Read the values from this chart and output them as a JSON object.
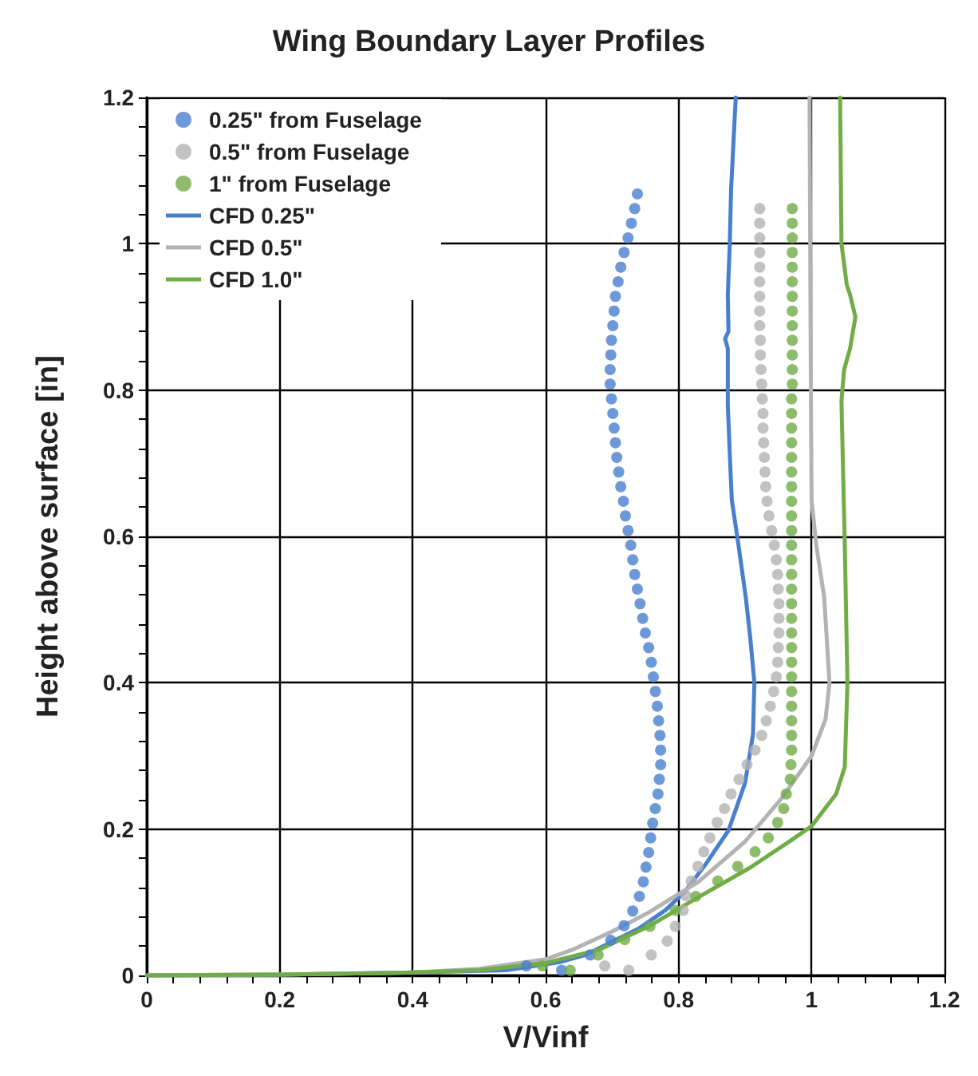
{
  "chart_data": {
    "type": "line",
    "title": "Wing Boundary Layer Profiles",
    "xlabel": "V/Vinf",
    "ylabel": "Height above surface [in]",
    "xlim": [
      0,
      1.2
    ],
    "xticks": [
      0,
      0.2,
      0.4,
      0.6,
      0.8,
      1,
      1.2
    ],
    "ylim": [
      0,
      1.2
    ],
    "yticks": [
      0,
      0.2,
      0.4,
      0.6,
      0.8,
      1,
      1.2
    ],
    "grid": true,
    "legend": "top left",
    "series": [
      {
        "name": "0.25\" from Fuselage",
        "type": "scatter",
        "marker": "circle",
        "color": "#4a7fcf",
        "x": [
          0.571,
          0.624,
          0.667,
          0.698,
          0.718,
          0.731,
          0.741,
          0.747,
          0.751,
          0.755,
          0.758,
          0.761,
          0.765,
          0.769,
          0.771,
          0.773,
          0.773,
          0.772,
          0.77,
          0.768,
          0.765,
          0.762,
          0.759,
          0.755,
          0.75,
          0.746,
          0.742,
          0.738,
          0.734,
          0.731,
          0.728,
          0.724,
          0.72,
          0.717,
          0.713,
          0.71,
          0.707,
          0.705,
          0.703,
          0.701,
          0.699,
          0.697,
          0.697,
          0.698,
          0.699,
          0.701,
          0.703,
          0.705,
          0.709,
          0.713,
          0.718,
          0.724,
          0.729,
          0.734,
          0.738
        ],
        "values": [
          0.013,
          0.007,
          0.028,
          0.048,
          0.068,
          0.088,
          0.108,
          0.128,
          0.148,
          0.168,
          0.188,
          0.208,
          0.228,
          0.248,
          0.268,
          0.288,
          0.308,
          0.328,
          0.348,
          0.368,
          0.388,
          0.408,
          0.428,
          0.448,
          0.468,
          0.488,
          0.508,
          0.528,
          0.548,
          0.568,
          0.588,
          0.608,
          0.628,
          0.648,
          0.668,
          0.688,
          0.708,
          0.728,
          0.748,
          0.768,
          0.788,
          0.808,
          0.828,
          0.848,
          0.868,
          0.888,
          0.908,
          0.928,
          0.948,
          0.968,
          0.988,
          1.008,
          1.028,
          1.048,
          1.068
        ]
      },
      {
        "name": "0.5\" from Fuselage",
        "type": "scatter",
        "marker": "circle",
        "color": "#b3b3b3",
        "x": [
          0.689,
          0.725,
          0.759,
          0.783,
          0.795,
          0.807,
          0.811,
          0.819,
          0.829,
          0.838,
          0.847,
          0.858,
          0.869,
          0.879,
          0.891,
          0.903,
          0.915,
          0.925,
          0.932,
          0.938,
          0.943,
          0.947,
          0.949,
          0.95,
          0.951,
          0.951,
          0.951,
          0.95,
          0.949,
          0.947,
          0.944,
          0.94,
          0.936,
          0.933,
          0.931,
          0.93,
          0.929,
          0.928,
          0.927,
          0.927,
          0.926,
          0.925,
          0.924,
          0.923,
          0.923,
          0.922,
          0.922,
          0.922,
          0.922,
          0.922,
          0.922,
          0.922,
          0.922,
          0.922
        ],
        "values": [
          0.013,
          0.007,
          0.028,
          0.047,
          0.067,
          0.089,
          0.109,
          0.129,
          0.149,
          0.169,
          0.188,
          0.209,
          0.228,
          0.248,
          0.268,
          0.288,
          0.308,
          0.328,
          0.348,
          0.368,
          0.388,
          0.408,
          0.428,
          0.448,
          0.468,
          0.488,
          0.508,
          0.528,
          0.548,
          0.568,
          0.588,
          0.608,
          0.628,
          0.648,
          0.668,
          0.688,
          0.708,
          0.728,
          0.748,
          0.768,
          0.788,
          0.808,
          0.828,
          0.848,
          0.868,
          0.888,
          0.908,
          0.928,
          0.948,
          0.968,
          0.988,
          1.008,
          1.028,
          1.048
        ]
      },
      {
        "name": "1\" from Fuselage",
        "type": "scatter",
        "marker": "circle",
        "color": "#70ad47",
        "x": [
          0.595,
          0.637,
          0.679,
          0.719,
          0.757,
          0.795,
          0.826,
          0.859,
          0.889,
          0.915,
          0.935,
          0.949,
          0.958,
          0.962,
          0.968,
          0.969,
          0.97,
          0.97,
          0.97,
          0.97,
          0.97,
          0.97,
          0.97,
          0.97,
          0.97,
          0.97,
          0.97,
          0.97,
          0.97,
          0.97,
          0.97,
          0.97,
          0.97,
          0.97,
          0.97,
          0.97,
          0.97,
          0.97,
          0.97,
          0.97,
          0.97,
          0.971,
          0.971,
          0.971,
          0.971,
          0.971,
          0.971,
          0.971,
          0.971,
          0.971,
          0.971,
          0.971,
          0.971,
          0.971
        ],
        "values": [
          0.013,
          0.007,
          0.028,
          0.049,
          0.067,
          0.089,
          0.108,
          0.129,
          0.149,
          0.169,
          0.188,
          0.209,
          0.228,
          0.248,
          0.268,
          0.288,
          0.308,
          0.328,
          0.348,
          0.368,
          0.388,
          0.408,
          0.428,
          0.448,
          0.468,
          0.488,
          0.508,
          0.528,
          0.548,
          0.568,
          0.588,
          0.608,
          0.628,
          0.648,
          0.668,
          0.688,
          0.708,
          0.728,
          0.748,
          0.768,
          0.788,
          0.808,
          0.828,
          0.848,
          0.868,
          0.888,
          0.908,
          0.928,
          0.948,
          0.968,
          0.988,
          1.008,
          1.028,
          1.048
        ]
      },
      {
        "name": "CFD 0.25\"",
        "marker": "none",
        "line_style": "solid",
        "color": "#4a7fcf",
        "x": [
          0,
          0.2,
          0.4,
          0.54,
          0.62,
          0.66,
          0.7,
          0.74,
          0.78,
          0.81,
          0.84,
          0.875,
          0.9,
          0.912,
          0.914,
          0.908,
          0.901,
          0.89,
          0.88,
          0.877,
          0.874,
          0.874,
          0.87,
          0.875,
          0.874,
          0.877,
          0.879,
          0.886
        ],
        "values": [
          0,
          0.001,
          0.004,
          0.007,
          0.018,
          0.028,
          0.046,
          0.064,
          0.089,
          0.115,
          0.151,
          0.198,
          0.263,
          0.33,
          0.4,
          0.46,
          0.517,
          0.589,
          0.65,
          0.713,
          0.78,
          0.857,
          0.87,
          0.88,
          0.93,
          1.0,
          1.075,
          1.2
        ]
      },
      {
        "name": "CFD 0.5\"",
        "marker": "none",
        "line_style": "solid",
        "color": "#b3b3b3",
        "x": [
          0,
          0.2,
          0.4,
          0.5,
          0.6,
          0.64,
          0.7,
          0.755,
          0.83,
          0.9,
          0.955,
          1.0,
          1.021,
          1.027,
          1.019,
          1.007,
          1.0,
          0.999,
          0.998,
          0.997
        ],
        "values": [
          0,
          0.001,
          0.004,
          0.009,
          0.022,
          0.035,
          0.06,
          0.086,
          0.128,
          0.183,
          0.242,
          0.3,
          0.35,
          0.4,
          0.517,
          0.589,
          0.65,
          0.8,
          1.0,
          1.2
        ]
      },
      {
        "name": "CFD 1.0\"",
        "marker": "none",
        "line_style": "solid",
        "color": "#70ad47",
        "x": [
          0,
          0.2,
          0.4,
          0.5,
          0.6,
          0.68,
          0.755,
          0.83,
          0.907,
          0.97,
          1.0,
          1.037,
          1.05,
          1.054,
          1.05,
          1.045,
          1.049,
          1.058,
          1.066,
          1.058,
          1.053,
          1.045,
          1.043
        ],
        "values": [
          0,
          0.001,
          0.004,
          0.007,
          0.017,
          0.035,
          0.067,
          0.107,
          0.147,
          0.185,
          0.204,
          0.248,
          0.285,
          0.4,
          0.589,
          0.785,
          0.828,
          0.857,
          0.9,
          0.93,
          0.944,
          1.0,
          1.2
        ]
      }
    ]
  }
}
